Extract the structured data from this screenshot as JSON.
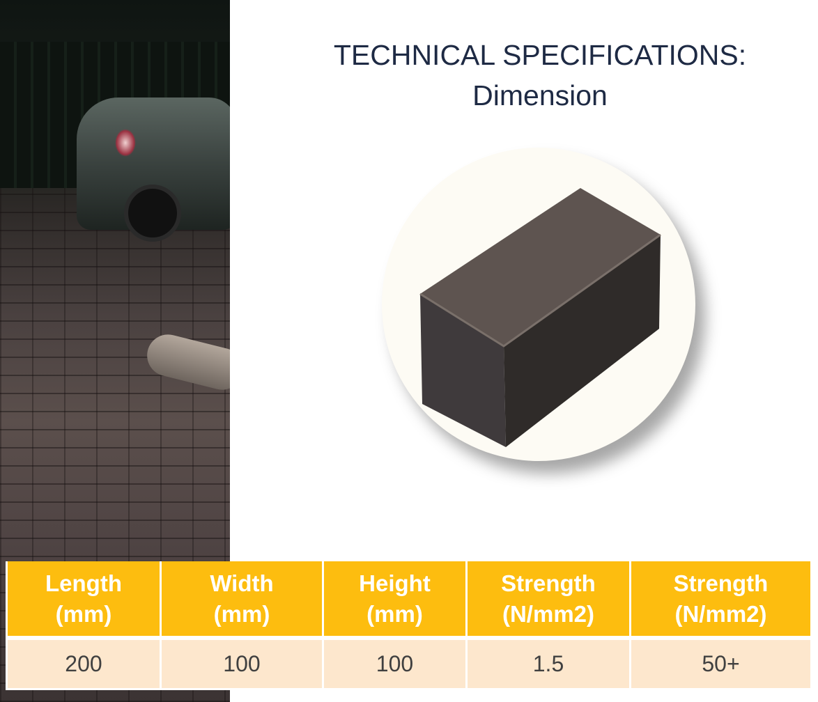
{
  "heading": {
    "line1": "TECHNICAL SPECIFICATIONS:",
    "line2": "Dimension"
  },
  "table": {
    "headers": [
      {
        "name": "Length",
        "unit": "(mm)"
      },
      {
        "name": "Width",
        "unit": "(mm)"
      },
      {
        "name": "Height",
        "unit": "(mm)"
      },
      {
        "name": "Strength",
        "unit": "(N/mm2)"
      },
      {
        "name": "Strength",
        "unit": "(N/mm2)"
      }
    ],
    "values": [
      "200",
      "100",
      "100",
      "1.5",
      "50+"
    ]
  },
  "colors": {
    "header_bg": "#fdbd0f",
    "row_bg": "#fde7cd",
    "title": "#1e2a44"
  }
}
